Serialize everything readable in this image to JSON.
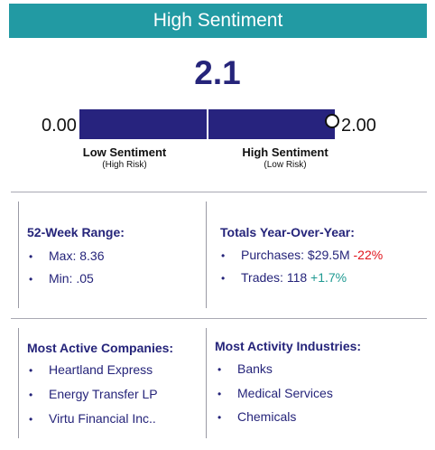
{
  "header": {
    "title": "High Sentiment"
  },
  "gauge": {
    "score": "2.1",
    "score_value": 2.1,
    "min_label": "0.00",
    "max_label": "2.00",
    "low": {
      "title": "Low Sentiment",
      "sub": "(High Risk)"
    },
    "high": {
      "title": "High Sentiment",
      "sub": "(Low Risk)"
    }
  },
  "week_range": {
    "title": "52-Week Range:",
    "items": [
      "Max: 8.36",
      "Min: .05"
    ]
  },
  "totals": {
    "title": "Totals Year-Over-Year:",
    "purchases": {
      "label": "Purchases: $29.5M",
      "change": "-22%"
    },
    "trades": {
      "label": "Trades: 118",
      "change": "+1.7%"
    }
  },
  "companies": {
    "title": "Most Active Companies:",
    "items": [
      "Heartland Express",
      "Energy Transfer LP",
      "Virtu Financial Inc.."
    ]
  },
  "industries": {
    "title": "Most Activity Industries:",
    "items": [
      "Banks",
      "Medical Services",
      "Chemicals"
    ]
  },
  "colors": {
    "header": "#229aa3",
    "bar": "#27237e",
    "text": "#25247a",
    "negative": "#e0141b",
    "positive": "#1f9a92"
  }
}
